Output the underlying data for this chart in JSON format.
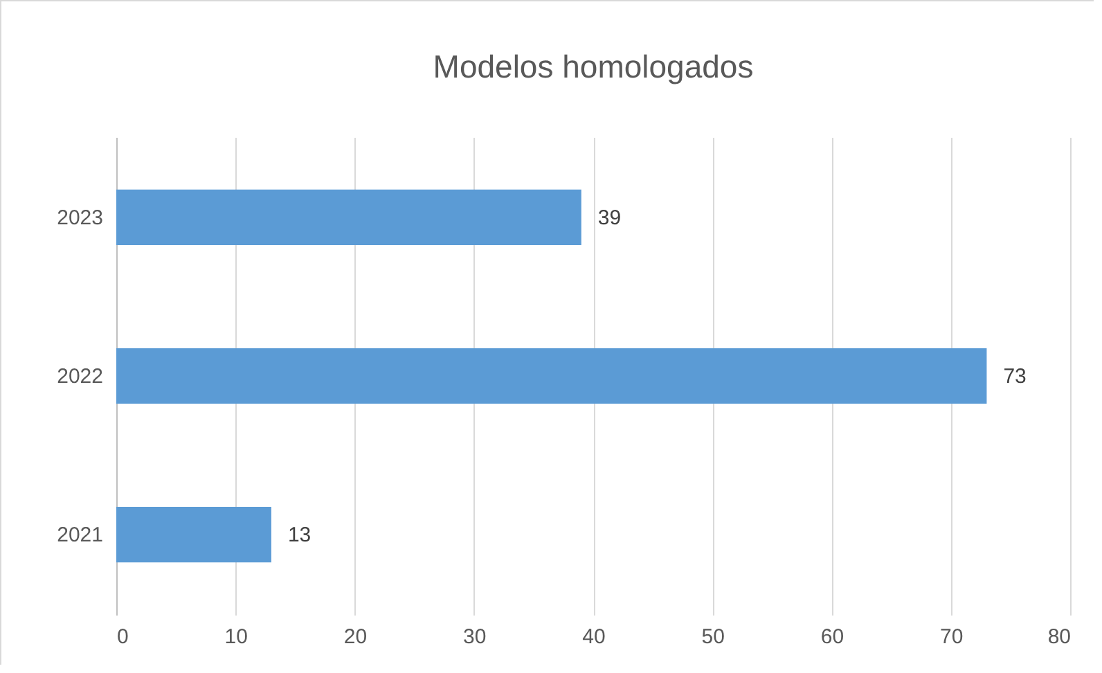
{
  "chart_data": {
    "type": "bar",
    "title": "Modelos homologados",
    "orientation": "horizontal",
    "categories": [
      "2023",
      "2022",
      "2021"
    ],
    "values": [
      39,
      73,
      13
    ],
    "color": "#5b9bd5",
    "xlim": [
      0,
      80
    ],
    "xticks": [
      0,
      10,
      20,
      30,
      40,
      50,
      60,
      70,
      80
    ],
    "grid": "x",
    "data_labels": true
  }
}
